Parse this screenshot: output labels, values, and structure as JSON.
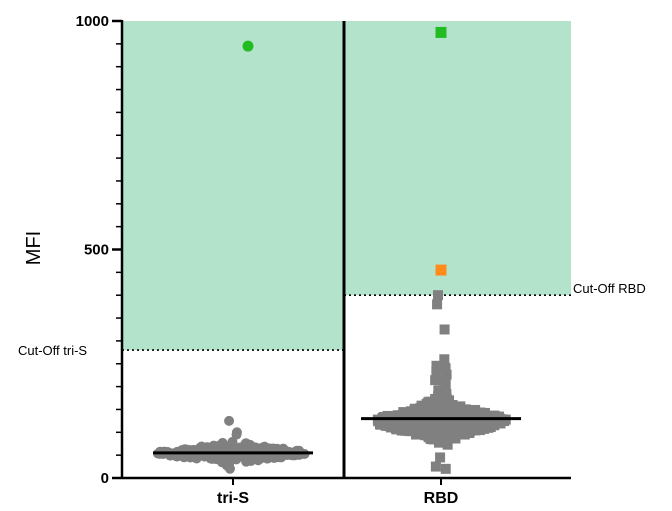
{
  "chart_data": {
    "type": "scatter",
    "title": "",
    "ylabel": "MFI",
    "xlabel": "",
    "ylim": [
      0,
      1000
    ],
    "yticks": [
      0,
      500,
      1000
    ],
    "categories": [
      "tri-S",
      "RBD"
    ],
    "colors": {
      "positive_region": "#b3e3cb",
      "negative_point": "#808080",
      "positive_point": "#22bb22",
      "borderline_point": "#ff8c1a",
      "median_line": "#000000"
    },
    "series": [
      {
        "category": "tri-S",
        "marker": "circle",
        "cutoff": 280,
        "cutoff_label": "Cut-Off tri-S",
        "median": 55,
        "positive_points": [
          {
            "x": "tri-S",
            "y": 945
          }
        ],
        "negative_points_summary": {
          "min": 15,
          "max": 125,
          "distribution_center": 55
        }
      },
      {
        "category": "RBD",
        "marker": "square",
        "cutoff": 400,
        "cutoff_label": "Cut-Off RBD",
        "median": 130,
        "positive_points": [
          {
            "x": "RBD",
            "y": 975
          }
        ],
        "borderline_points": [
          {
            "x": "RBD",
            "y": 455
          }
        ],
        "negative_points_summary": {
          "min": 20,
          "max": 400,
          "distribution_center": 125
        }
      }
    ]
  }
}
